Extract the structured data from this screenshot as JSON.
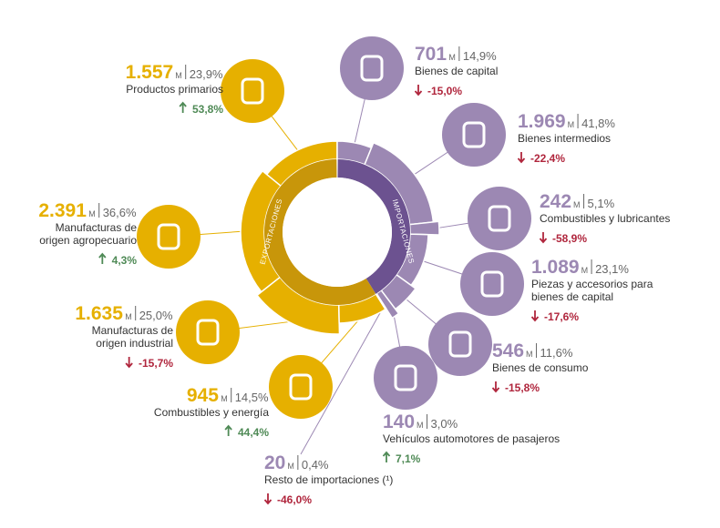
{
  "ring_labels": {
    "exports": "EXPORTACIONES",
    "imports": "IMPORTACIONES"
  },
  "exports": {
    "items": [
      {
        "value": "1.557",
        "unit": "M",
        "share": "23,9%",
        "label": [
          "Productos primarios"
        ],
        "change": "53,8%",
        "trend": "up"
      },
      {
        "value": "2.391",
        "unit": "M",
        "share": "36,6%",
        "label": [
          "Manufacturas de",
          "origen agropecuario"
        ],
        "change": "4,3%",
        "trend": "up"
      },
      {
        "value": "1.635",
        "unit": "M",
        "share": "25,0%",
        "label": [
          "Manufacturas de",
          "origen industrial"
        ],
        "change": "-15,7%",
        "trend": "down"
      },
      {
        "value": "945",
        "unit": "M",
        "share": "14,5%",
        "label": [
          "Combustibles y energía"
        ],
        "change": "44,4%",
        "trend": "up"
      }
    ]
  },
  "imports": {
    "items": [
      {
        "value": "701",
        "unit": "M",
        "share": "14,9%",
        "label": [
          "Bienes de capital"
        ],
        "change": "-15,0%",
        "trend": "down"
      },
      {
        "value": "1.969",
        "unit": "M",
        "share": "41,8%",
        "label": [
          "Bienes intermedios"
        ],
        "change": "-22,4%",
        "trend": "down"
      },
      {
        "value": "242",
        "unit": "M",
        "share": "5,1%",
        "label": [
          "Combustibles y lubricantes"
        ],
        "change": "-58,9%",
        "trend": "down"
      },
      {
        "value": "1.089",
        "unit": "M",
        "share": "23,1%",
        "label": [
          "Piezas y accesorios para",
          "bienes de capital"
        ],
        "change": "-17,6%",
        "trend": "down"
      },
      {
        "value": "546",
        "unit": "M",
        "share": "11,6%",
        "label": [
          "Bienes de consumo"
        ],
        "change": "-15,8%",
        "trend": "down"
      },
      {
        "value": "140",
        "unit": "M",
        "share": "3,0%",
        "label": [
          "Vehículos automotores de pasajeros"
        ],
        "change": "7,1%",
        "trend": "up"
      },
      {
        "value": "20",
        "unit": "M",
        "share": "0,4%",
        "label": [
          "Resto de importaciones (¹)"
        ],
        "change": "-46,0%",
        "trend": "down"
      }
    ]
  }
}
